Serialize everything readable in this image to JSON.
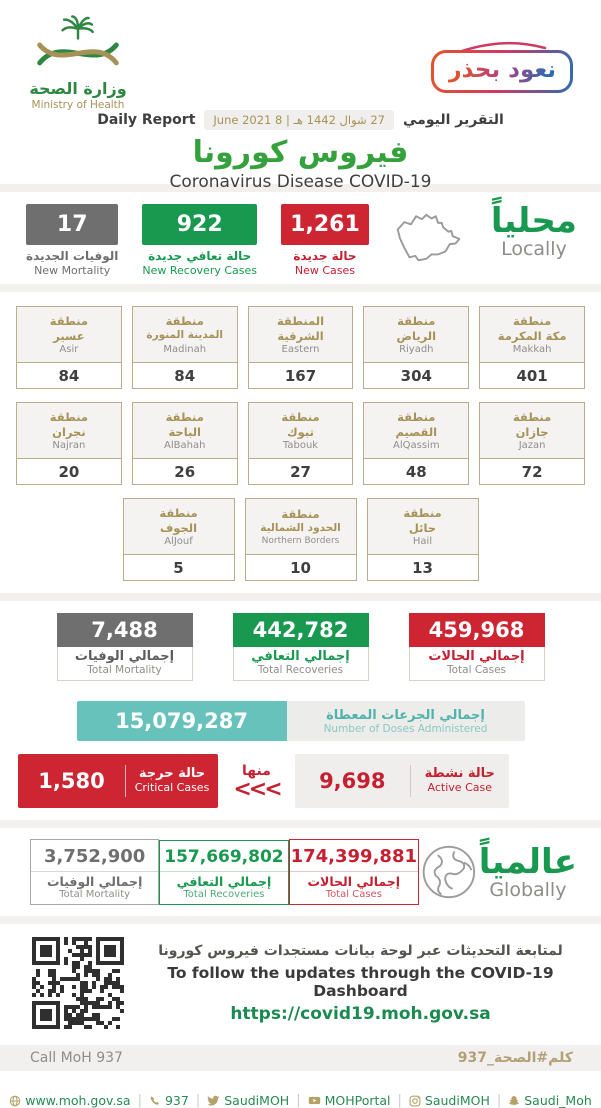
{
  "header": {
    "logo": {
      "ar": "وزارة الصحة",
      "en": "Ministry of Health"
    },
    "badge": "نعود بحذر",
    "report_label_ar": "التقرير اليومي",
    "report_date": "27 شوال 1442 هـ | 8 June 2021",
    "report_label_en": "Daily Report",
    "title_ar": "فيروس كورونا",
    "title_en": "Coronavirus Disease COVID-19"
  },
  "locally": {
    "heading_ar": "محلياً",
    "heading_en": "Locally",
    "new_cases": {
      "value": "1,261",
      "label_ar": "حالة جديدة",
      "label_en": "New Cases"
    },
    "new_recoveries": {
      "value": "922",
      "label_ar": "حالة تعافي جديدة",
      "label_en": "New Recovery Cases"
    },
    "new_mortality": {
      "value": "17",
      "label_ar": "الوفيات الجديدة",
      "label_en": "New Mortality"
    }
  },
  "regions": [
    {
      "ar_top": "منطقة",
      "ar_name": "مكة المكرمة",
      "en": "Makkah",
      "value": "401"
    },
    {
      "ar_top": "منطقة",
      "ar_name": "الرياض",
      "en": "Riyadh",
      "value": "304"
    },
    {
      "ar_top": "المنطقة",
      "ar_name": "الشرقية",
      "en": "Eastern",
      "value": "167"
    },
    {
      "ar_top": "منطقة",
      "ar_name": "المدينة المنورة",
      "en": "Madinah",
      "value": "84"
    },
    {
      "ar_top": "منطقة",
      "ar_name": "عسير",
      "en": "Asir",
      "value": "84"
    },
    {
      "ar_top": "منطقة",
      "ar_name": "جازان",
      "en": "Jazan",
      "value": "72"
    },
    {
      "ar_top": "منطقة",
      "ar_name": "القصيم",
      "en": "AlQassim",
      "value": "48"
    },
    {
      "ar_top": "منطقة",
      "ar_name": "تبوك",
      "en": "Tabouk",
      "value": "27"
    },
    {
      "ar_top": "منطقة",
      "ar_name": "الباحة",
      "en": "AlBahah",
      "value": "26"
    },
    {
      "ar_top": "منطقة",
      "ar_name": "نجران",
      "en": "Najran",
      "value": "20"
    },
    {
      "ar_top": "منطقة",
      "ar_name": "حائل",
      "en": "Hail",
      "value": "13"
    },
    {
      "ar_top": "منطقة",
      "ar_name": "الحدود الشمالية",
      "en": "Northern Borders",
      "value": "10"
    },
    {
      "ar_top": "منطقة",
      "ar_name": "الجوف",
      "en": "AlJouf",
      "value": "5"
    }
  ],
  "totals": {
    "cases": {
      "value": "459,968",
      "label_ar": "إجمالي الحالات",
      "label_en": "Total Cases"
    },
    "recoveries": {
      "value": "442,782",
      "label_ar": "إجمالي التعافي",
      "label_en": "Total Recoveries"
    },
    "mortality": {
      "value": "7,488",
      "label_ar": "إجمالي الوفيات",
      "label_en": "Total Mortality"
    }
  },
  "doses": {
    "value": "15,079,287",
    "label_ar": "إجمالي الجرعات المعطاة",
    "label_en": "Number of Doses Administered"
  },
  "active_critical": {
    "active": {
      "value": "9,698",
      "label_ar": "حالة نشطة",
      "label_en": "Active Case"
    },
    "linker_ar": "منها",
    "arrows": "<<<",
    "critical": {
      "value": "1,580",
      "label_ar": "حالة حرجة",
      "label_en": "Critical Cases"
    }
  },
  "globally": {
    "heading_ar": "عالمياً",
    "heading_en": "Globally",
    "cases": {
      "value": "174,399,881",
      "label_ar": "إجمالي الحالات",
      "label_en": "Total Cases"
    },
    "recoveries": {
      "value": "157,669,802",
      "label_ar": "إجمالي التعافي",
      "label_en": "Total Recoveries"
    },
    "mortality": {
      "value": "3,752,900",
      "label_ar": "إجمالي الوفيات",
      "label_en": "Total Mortality"
    }
  },
  "dashboard": {
    "line_ar": "لمتابعة التحديثات عبر لوحة بيانات مستجدات فيروس كورونا",
    "line_en": "To follow the updates through the COVID-19 Dashboard",
    "url": "https://covid19.moh.gov.sa"
  },
  "hotline": {
    "en": "Call MoH 937",
    "ar": "كلم#الصحة_937"
  },
  "footer_links": [
    {
      "icon": "globe-icon",
      "label": "www.moh.gov.sa"
    },
    {
      "icon": "phone-icon",
      "label": "937"
    },
    {
      "icon": "twitter-icon",
      "label": "SaudiMOH"
    },
    {
      "icon": "youtube-icon",
      "label": "MOHPortal"
    },
    {
      "icon": "instagram-icon",
      "label": "SaudiMOH"
    },
    {
      "icon": "snapchat-icon",
      "label": "Saudi_Moh"
    }
  ],
  "colors": {
    "green": "#18994f",
    "title_green": "#35a13c",
    "red": "#ce2533",
    "gray": "#6f6f6f",
    "tan": "#a69257",
    "teal": "#67c2bc"
  }
}
